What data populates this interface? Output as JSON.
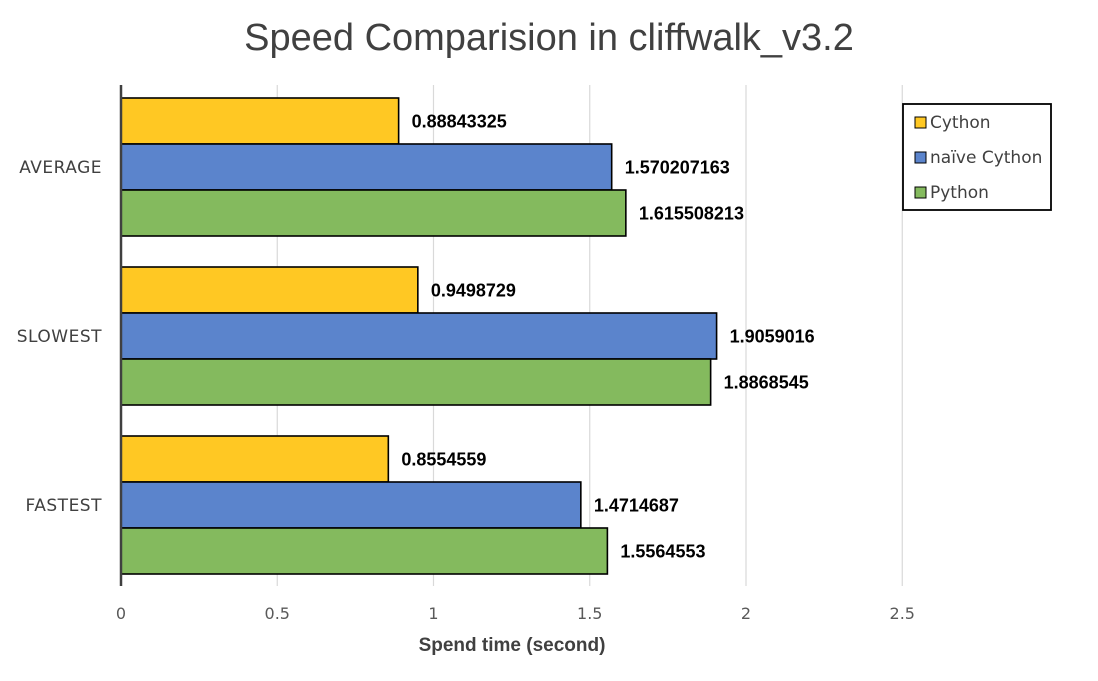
{
  "chart_data": {
    "type": "bar",
    "orientation": "horizontal",
    "title": "Speed Comparision in cliffwalk_v3.2",
    "xlabel": "Spend time (second)",
    "ylabel": "",
    "categories": [
      "AVERAGE",
      "SLOWEST",
      "FASTEST"
    ],
    "series": [
      {
        "name": "Cython",
        "color": "#FFC823",
        "values": [
          0.88843325,
          0.9498729,
          0.8554559
        ],
        "labels": [
          "0.88843325",
          "0.9498729",
          "0.8554559"
        ]
      },
      {
        "name": "naïve Cython",
        "color": "#5B84CC",
        "values": [
          1.570207163,
          1.9059016,
          1.4714687
        ],
        "labels": [
          "1.570207163",
          "1.9059016",
          "1.4714687"
        ]
      },
      {
        "name": "Python",
        "color": "#84BA5E",
        "values": [
          1.615508213,
          1.8868545,
          1.5564553
        ],
        "labels": [
          "1.615508213",
          "1.8868545",
          "1.5564553"
        ]
      }
    ],
    "xlim": [
      0,
      3
    ],
    "xticks": [
      0,
      0.5,
      1,
      1.5,
      2,
      2.5
    ],
    "xtick_labels": [
      "0",
      "0.5",
      "1",
      "1.5",
      "2",
      "2.5"
    ],
    "grid": true,
    "legend_position": "top-right",
    "gridline_color": "#D9D9D9",
    "axis_color": "#404040"
  }
}
